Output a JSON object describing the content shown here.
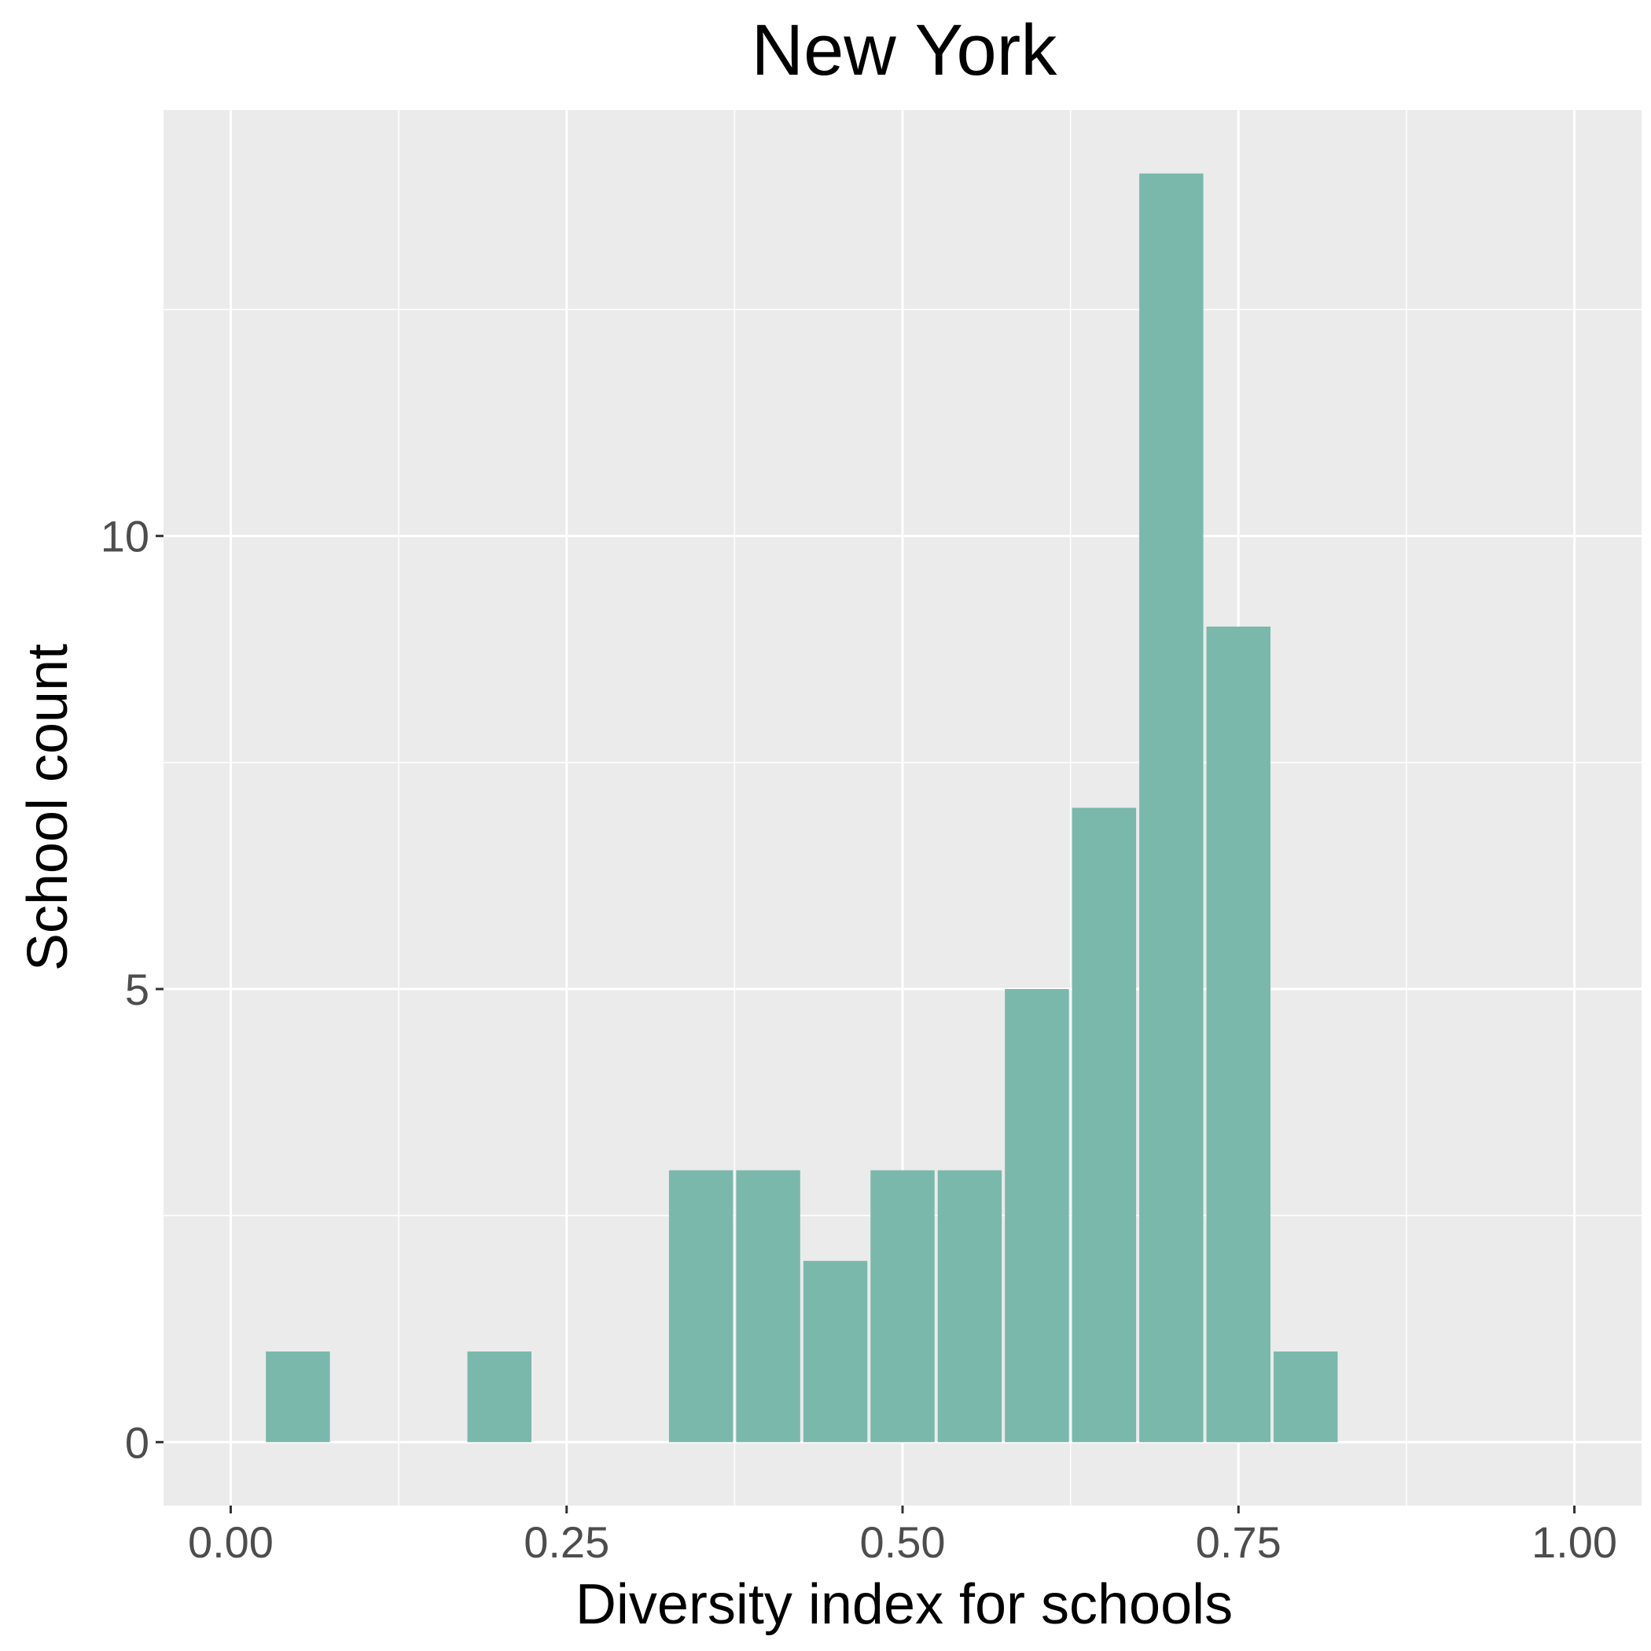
{
  "chart_data": {
    "type": "bar",
    "title": "New York",
    "xlabel": "Diversity index for schools",
    "ylabel": "School count",
    "xlim": [
      -0.05,
      1.05
    ],
    "ylim": [
      -0.7,
      14.7
    ],
    "x_ticks": [
      0.0,
      0.25,
      0.5,
      0.75,
      1.0
    ],
    "x_tick_labels": [
      "0.00",
      "0.25",
      "0.50",
      "0.75",
      "1.00"
    ],
    "y_ticks": [
      0,
      5,
      10
    ],
    "y_tick_labels": [
      "0",
      "5",
      "10"
    ],
    "bin_width": 0.05,
    "bin_centers": [
      0.0,
      0.05,
      0.1,
      0.15,
      0.2,
      0.25,
      0.3,
      0.35,
      0.4,
      0.45,
      0.5,
      0.55,
      0.6,
      0.65,
      0.7,
      0.75,
      0.8,
      0.85,
      0.9,
      0.95,
      1.0
    ],
    "values": [
      0,
      1,
      0,
      0,
      1,
      0,
      0,
      3,
      3,
      2,
      3,
      3,
      5,
      7,
      14,
      9,
      1,
      0,
      0,
      0,
      0
    ],
    "grid": true,
    "colors": {
      "bar_fill": "#7ab8ac",
      "panel_background": "#ebebeb",
      "grid": "#ffffff"
    }
  }
}
